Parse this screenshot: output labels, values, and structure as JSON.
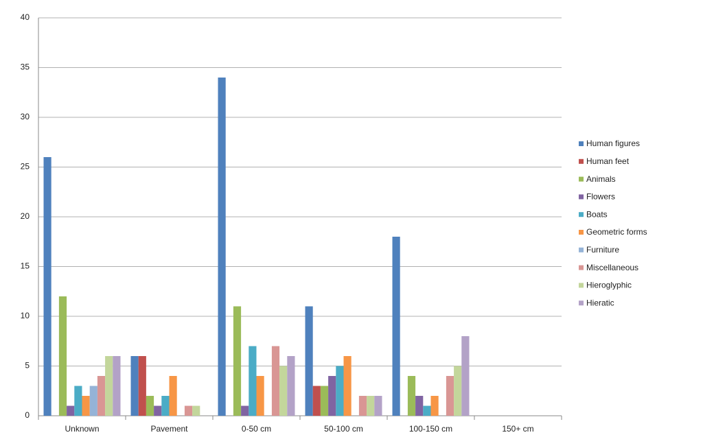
{
  "chart_data": {
    "type": "bar",
    "categories": [
      "Unknown",
      "Pavement",
      "0-50 cm",
      "50-100 cm",
      "100-150 cm",
      "150+ cm"
    ],
    "series": [
      {
        "name": "Human figures",
        "color": "#4F81BD",
        "values": [
          26,
          6,
          34,
          11,
          18,
          0
        ]
      },
      {
        "name": "Human feet",
        "color": "#C0504D",
        "values": [
          0,
          6,
          0,
          3,
          0,
          0
        ]
      },
      {
        "name": "Animals",
        "color": "#9BBB59",
        "values": [
          12,
          2,
          11,
          3,
          4,
          0
        ]
      },
      {
        "name": "Flowers",
        "color": "#8064A2",
        "values": [
          1,
          1,
          1,
          4,
          2,
          0
        ]
      },
      {
        "name": "Boats",
        "color": "#4BACC6",
        "values": [
          3,
          2,
          7,
          5,
          1,
          0
        ]
      },
      {
        "name": "Geometric forms",
        "color": "#F79646",
        "values": [
          2,
          4,
          4,
          6,
          2,
          0
        ]
      },
      {
        "name": "Furniture",
        "color": "#95B3D7",
        "values": [
          3,
          0,
          0,
          0,
          0,
          0
        ]
      },
      {
        "name": "Miscellaneous",
        "color": "#D99694",
        "values": [
          4,
          1,
          7,
          2,
          4,
          0
        ]
      },
      {
        "name": "Hieroglyphic",
        "color": "#C3D69B",
        "values": [
          6,
          1,
          5,
          2,
          5,
          0
        ]
      },
      {
        "name": "Hieratic",
        "color": "#B3A2C7",
        "values": [
          6,
          0,
          6,
          2,
          8,
          0
        ]
      }
    ],
    "ylim": [
      0,
      40
    ],
    "yticks": [
      0,
      5,
      10,
      15,
      20,
      25,
      30,
      35,
      40
    ],
    "grid": true,
    "legend": "right"
  }
}
